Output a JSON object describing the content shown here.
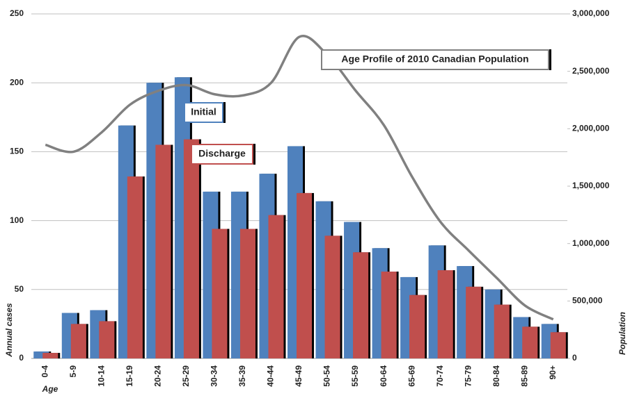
{
  "chart_data": {
    "type": "bar",
    "categories": [
      "0-4",
      "5-9",
      "10-14",
      "15-19",
      "20-24",
      "25-29",
      "30-34",
      "35-39",
      "40-44",
      "45-49",
      "50-54",
      "55-59",
      "60-64",
      "65-69",
      "70-74",
      "75-79",
      "80-84",
      "85-89",
      "90+"
    ],
    "series": [
      {
        "name": "Initial",
        "color": "#4f81bd",
        "values": [
          5,
          33,
          35,
          169,
          200,
          204,
          121,
          121,
          134,
          154,
          114,
          99,
          80,
          59,
          82,
          67,
          50,
          30,
          25
        ]
      },
      {
        "name": "Discharge",
        "color": "#c0504d",
        "values": [
          4,
          25,
          27,
          132,
          155,
          159,
          94,
          94,
          104,
          120,
          89,
          77,
          63,
          46,
          64,
          52,
          39,
          23,
          19
        ]
      },
      {
        "name": "Age Profile of 2010 Canadian Population",
        "type": "line",
        "axis": "y2",
        "color": "#808080",
        "values": [
          1860000,
          1800000,
          1970000,
          2210000,
          2330000,
          2380000,
          2300000,
          2290000,
          2400000,
          2800000,
          2640000,
          2330000,
          2030000,
          1580000,
          1190000,
          940000,
          700000,
          460000,
          340000
        ]
      }
    ],
    "x_label": "Age",
    "y_label": "Annual cases",
    "y2_label": "Population",
    "ylim": [
      0,
      250
    ],
    "yticks": [
      0,
      50,
      100,
      150,
      200,
      250
    ],
    "y2lim": [
      0,
      3000000
    ],
    "y2ticks": [
      {
        "value": 0,
        "label": "0"
      },
      {
        "value": 500000,
        "label": "500,000"
      },
      {
        "value": 1000000,
        "label": "1,000,000"
      },
      {
        "value": 1500000,
        "label": "1,500,000"
      },
      {
        "value": 2000000,
        "label": "2,000,000"
      },
      {
        "value": 2500000,
        "label": "2,500,000"
      },
      {
        "value": 3000000,
        "label": "3,000,000"
      }
    ],
    "grid": true
  }
}
